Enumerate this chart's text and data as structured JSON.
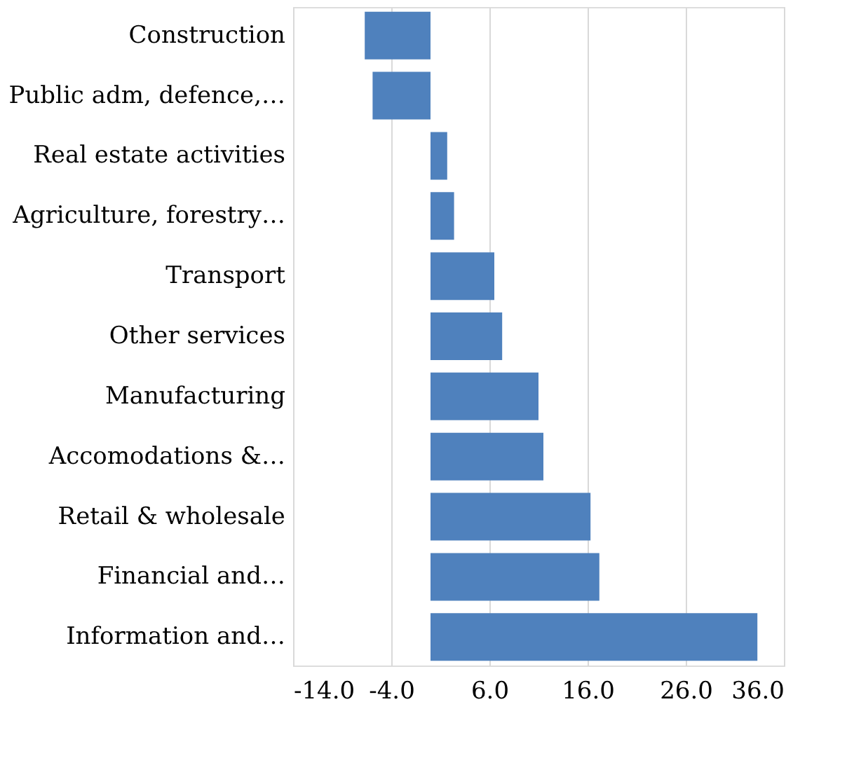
{
  "chart_data": {
    "type": "bar",
    "orientation": "horizontal",
    "categories": [
      "Construction",
      "Public adm, defence,…",
      "Real estate activities",
      "Agriculture, forestry…",
      "Transport",
      "Other services",
      "Manufacturing",
      "Accomodations &…",
      "Retail & wholesale",
      "Financial and…",
      "Information and…"
    ],
    "values": [
      -6.7,
      -5.9,
      1.7,
      2.4,
      6.5,
      7.3,
      11.0,
      11.5,
      16.3,
      17.2,
      33.3
    ],
    "color": "#4f81bd",
    "xlim": [
      -14,
      36
    ],
    "xticks": [
      {
        "value": -14,
        "label": "-14.0"
      },
      {
        "value": -4,
        "label": "-4.0"
      },
      {
        "value": 6,
        "label": "6.0"
      },
      {
        "value": 16,
        "label": "16.0"
      },
      {
        "value": 26,
        "label": "26.0"
      },
      {
        "value": 36,
        "label": "36.0"
      }
    ],
    "grid": "x"
  }
}
